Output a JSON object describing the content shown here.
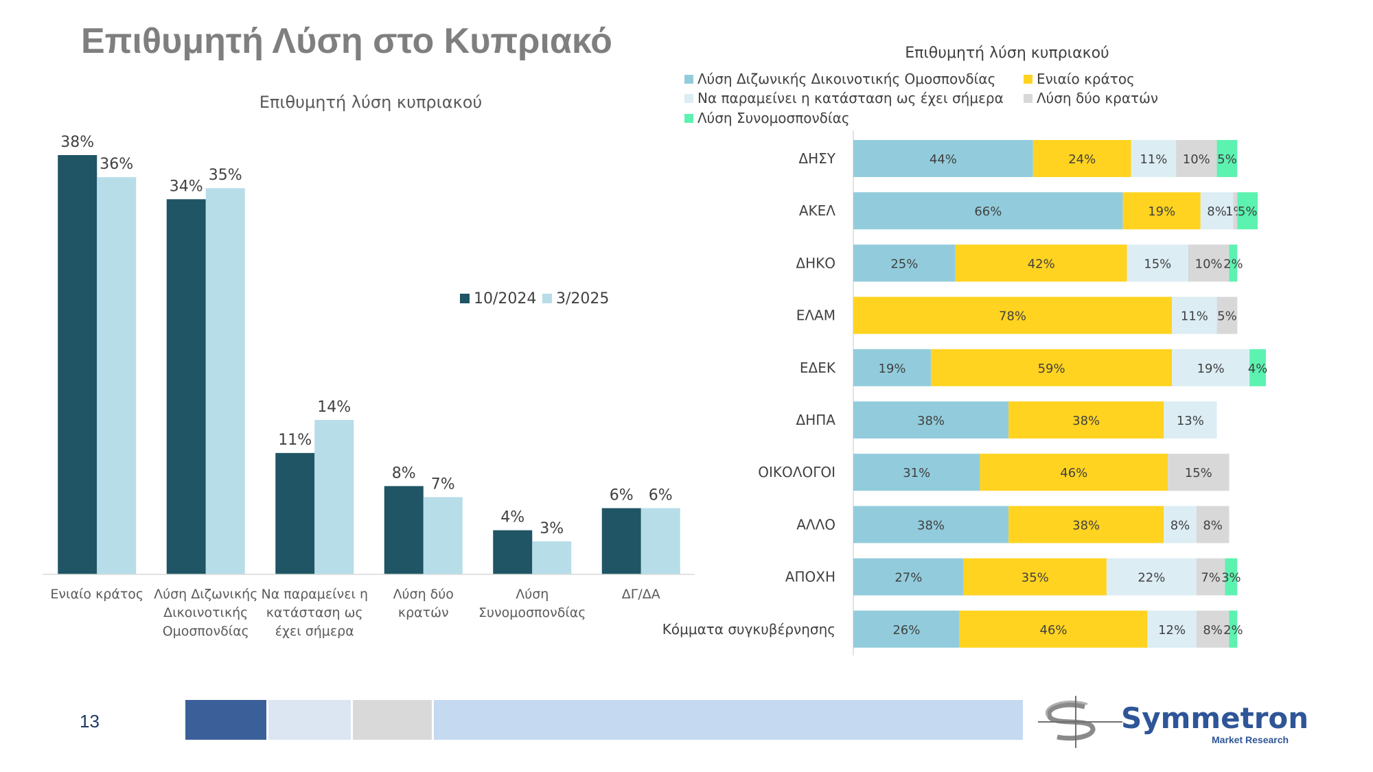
{
  "page": {
    "title": "Επιθυμητή Λύση στο Κυπριακό",
    "page_number": "13",
    "logo": {
      "name": "Symmetron",
      "tagline": "Market Research"
    }
  },
  "colors": {
    "series_2024": "#1f5565",
    "series_2025": "#b7dde8",
    "seg_dizonal": "#92ccdc",
    "seg_eniaio": "#ffd320",
    "seg_paramenei": "#dcedf4",
    "seg_dyo": "#d8d8d8",
    "seg_synomo": "#5cf2b0",
    "footer": [
      "#3b6099",
      "#dce6f2",
      "#d9d9d9",
      "#c5d9f0"
    ]
  },
  "chart_data": [
    {
      "type": "bar",
      "title": "Επιθυμητή λύση κυπριακού",
      "categories": [
        [
          "Ενιαίο κράτος"
        ],
        [
          "Λύση Διζωνικής",
          "Δικοινοτικής",
          "Ομοσπονδίας"
        ],
        [
          "Να παραμείνει η",
          "κατάσταση ως",
          "έχει σήμερα"
        ],
        [
          "Λύση δύο",
          "κρατών"
        ],
        [
          "Λύση",
          "Συνομοσπονδίας"
        ],
        [
          "ΔΓ/ΔΑ"
        ]
      ],
      "series": [
        {
          "name": "10/2024",
          "values": [
            38,
            34,
            11,
            8,
            4,
            6
          ],
          "labels": [
            "38%",
            "34%",
            "11%",
            "8%",
            "4%",
            "6%"
          ]
        },
        {
          "name": "3/2025",
          "values": [
            36,
            35,
            14,
            7,
            3,
            6
          ],
          "labels": [
            "36%",
            "35%",
            "14%",
            "7%",
            "3%",
            "6%"
          ]
        }
      ],
      "ylim": [
        0,
        38
      ],
      "legend": "center-right"
    },
    {
      "type": "bar",
      "orientation": "horizontal",
      "stacked": true,
      "title": "Επιθυμητή λύση κυπριακού",
      "legend_entries": [
        "Λύση Διζωνικής Δικοινοτικής Ομοσπονδίας",
        "Ενιαίο κράτος",
        "Να παραμείνει η κατάσταση ως έχει σήμερα",
        "Λύση δύο κρατών",
        "Λύση Συνομοσπονδίας"
      ],
      "categories": [
        "ΔΗΣΥ",
        "ΑΚΕΛ",
        "ΔΗΚΟ",
        "ΕΛΑΜ",
        "ΕΔΕΚ",
        "ΔΗΠΑ",
        "ΟΙΚΟΛΟΓΟΙ",
        "ΑΛΛΟ",
        "ΑΠΟΧΗ",
        "Κόμματα συγκυβέρνησης"
      ],
      "rows": [
        {
          "values": [
            44,
            24,
            11,
            10,
            5
          ],
          "labels": [
            "44%",
            "24%",
            "11%",
            "10%",
            "5%"
          ]
        },
        {
          "values": [
            66,
            19,
            8,
            1,
            5
          ],
          "labels": [
            "66%",
            "19%",
            "8%",
            "1%",
            "5%"
          ]
        },
        {
          "values": [
            25,
            42,
            15,
            10,
            2
          ],
          "labels": [
            "25%",
            "42%",
            "15%",
            "10%",
            "2%"
          ]
        },
        {
          "values": [
            0,
            78,
            11,
            5,
            0
          ],
          "labels": [
            "",
            "78%",
            "11%",
            "5%",
            ""
          ]
        },
        {
          "values": [
            19,
            59,
            19,
            0,
            4
          ],
          "labels": [
            "19%",
            "59%",
            "19%",
            "",
            "4%"
          ]
        },
        {
          "values": [
            38,
            38,
            13,
            0,
            0
          ],
          "labels": [
            "38%",
            "38%",
            "13%",
            "",
            ""
          ]
        },
        {
          "values": [
            31,
            46,
            0,
            15,
            0
          ],
          "labels": [
            "31%",
            "46%",
            "",
            "15%",
            ""
          ]
        },
        {
          "values": [
            38,
            38,
            8,
            8,
            0
          ],
          "labels": [
            "38%",
            "38%",
            "8%",
            "8%",
            ""
          ]
        },
        {
          "values": [
            27,
            35,
            22,
            7,
            3
          ],
          "labels": [
            "27%",
            "35%",
            "22%",
            "7%",
            "3%"
          ]
        },
        {
          "values": [
            26,
            46,
            12,
            8,
            2
          ],
          "labels": [
            "26%",
            "46%",
            "12%",
            "8%",
            "2%"
          ]
        }
      ],
      "xlim": [
        0,
        100
      ]
    }
  ]
}
